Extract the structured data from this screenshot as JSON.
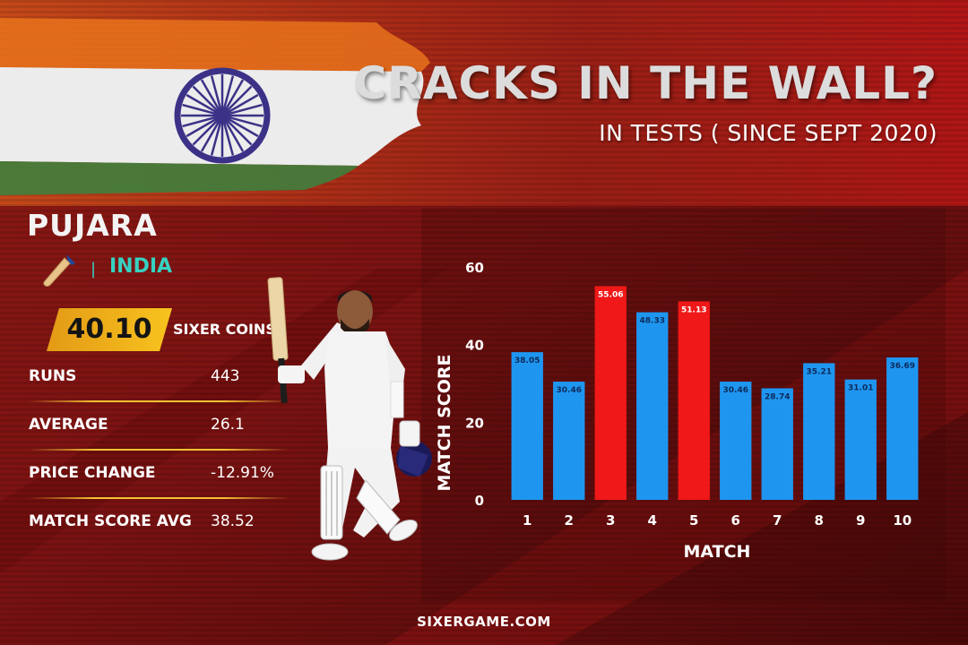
{
  "header": {
    "title": "CRACKS IN THE WALL?",
    "subtitle": "IN TESTS ( SINCE SEPT 2020)"
  },
  "player": {
    "name": "PUJARA",
    "country": "INDIA",
    "separator": "|",
    "coins_value": "40.10",
    "coins_label": "SIXER COINS"
  },
  "stats": [
    {
      "label": "RUNS",
      "value": "443"
    },
    {
      "label": "AVERAGE",
      "value": "26.1"
    },
    {
      "label": "PRICE CHANGE",
      "value": "-12.91%"
    },
    {
      "label": "MATCH SCORE AVG",
      "value": "38.52"
    }
  ],
  "icons": [
    "india-flag-icon",
    "cricket-bat-icon",
    "cricketer-illustration"
  ],
  "colors": {
    "background": "#7a1313",
    "accent_gold": "#f5b21c",
    "country_teal": "#36d1c1",
    "bar_blue": "#1e96f0",
    "bar_red": "#f01818"
  },
  "chart_data": {
    "type": "bar",
    "categories": [
      "1",
      "2",
      "3",
      "4",
      "5",
      "6",
      "7",
      "8",
      "9",
      "10"
    ],
    "values": [
      38.05,
      30.46,
      55.06,
      48.33,
      51.13,
      30.46,
      28.74,
      35.21,
      31.01,
      36.69
    ],
    "value_labels": [
      "38.05",
      "30.46",
      "55.06",
      "48.33",
      "51.13",
      "30.46",
      "28.74",
      "35.21",
      "31.01",
      "36.69"
    ],
    "highlighted": [
      false,
      false,
      true,
      false,
      true,
      false,
      false,
      false,
      false,
      false
    ],
    "xlabel": "MATCH",
    "ylabel": "MATCH SCORE",
    "ylim": [
      0,
      60
    ],
    "yticks": [
      0,
      20,
      40,
      60
    ],
    "grid": false
  },
  "footer": {
    "site": "SIXERGAME.COM"
  }
}
